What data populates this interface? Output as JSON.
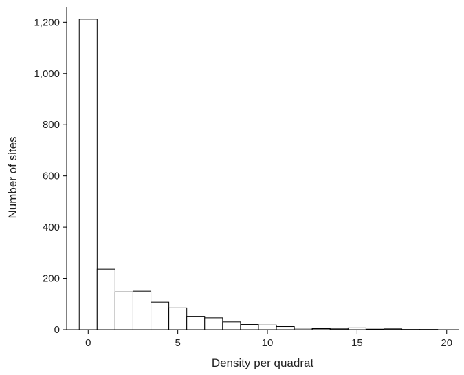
{
  "chart_data": {
    "type": "bar",
    "title": "",
    "xlabel": "Density per quadrat",
    "ylabel": "Number of sites",
    "bin_width": 1,
    "bins": [
      0,
      1,
      2,
      3,
      4,
      5,
      6,
      7,
      8,
      9,
      10,
      11,
      12,
      13,
      14,
      15,
      16,
      17,
      18,
      19
    ],
    "values": [
      1212,
      236,
      147,
      150,
      107,
      85,
      52,
      46,
      30,
      20,
      18,
      12,
      6,
      4,
      3,
      7,
      2,
      3,
      1,
      1
    ],
    "xlim": [
      -1.2,
      20.7
    ],
    "ylim": [
      0,
      1260
    ],
    "x_ticks": [
      0,
      5,
      10,
      15,
      20
    ],
    "x_tick_labels": [
      "0",
      "5",
      "10",
      "15",
      "20"
    ],
    "y_ticks": [
      0,
      200,
      400,
      600,
      800,
      1000,
      1200
    ],
    "y_tick_labels": [
      "0",
      "200",
      "400",
      "600",
      "800",
      "1,000",
      "1,200"
    ],
    "grid": false,
    "legend": "none",
    "bar_fill": "#ffffff",
    "bar_stroke": "#000000",
    "axis_color": "#000000"
  }
}
